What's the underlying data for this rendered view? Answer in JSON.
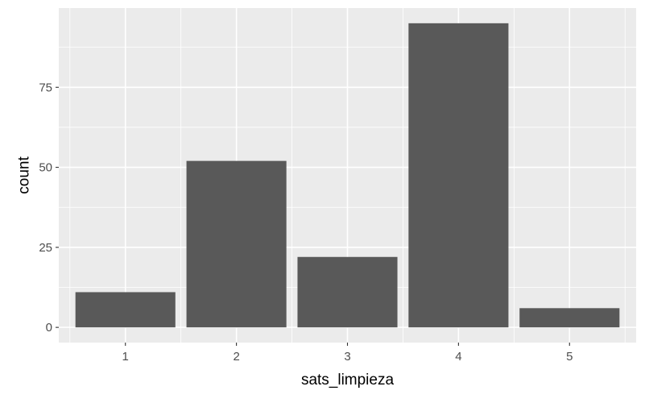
{
  "chart_data": {
    "type": "bar",
    "categories": [
      "1",
      "2",
      "3",
      "4",
      "5"
    ],
    "values": [
      11,
      52,
      22,
      95,
      6
    ],
    "title": "",
    "xlabel": "sats_limpieza",
    "ylabel": "count",
    "ylim": [
      -4.75,
      99.75
    ],
    "yticks": [
      0,
      25,
      50,
      75
    ],
    "ytick_labels": [
      "0",
      "25",
      "50",
      "75"
    ],
    "grid": true,
    "colors": {
      "panel": "#EBEBEB",
      "grid": "#FFFFFF",
      "bar": "#595959",
      "tick": "#333333",
      "tick_text": "#4D4D4D",
      "axis_title": "#000000"
    }
  }
}
